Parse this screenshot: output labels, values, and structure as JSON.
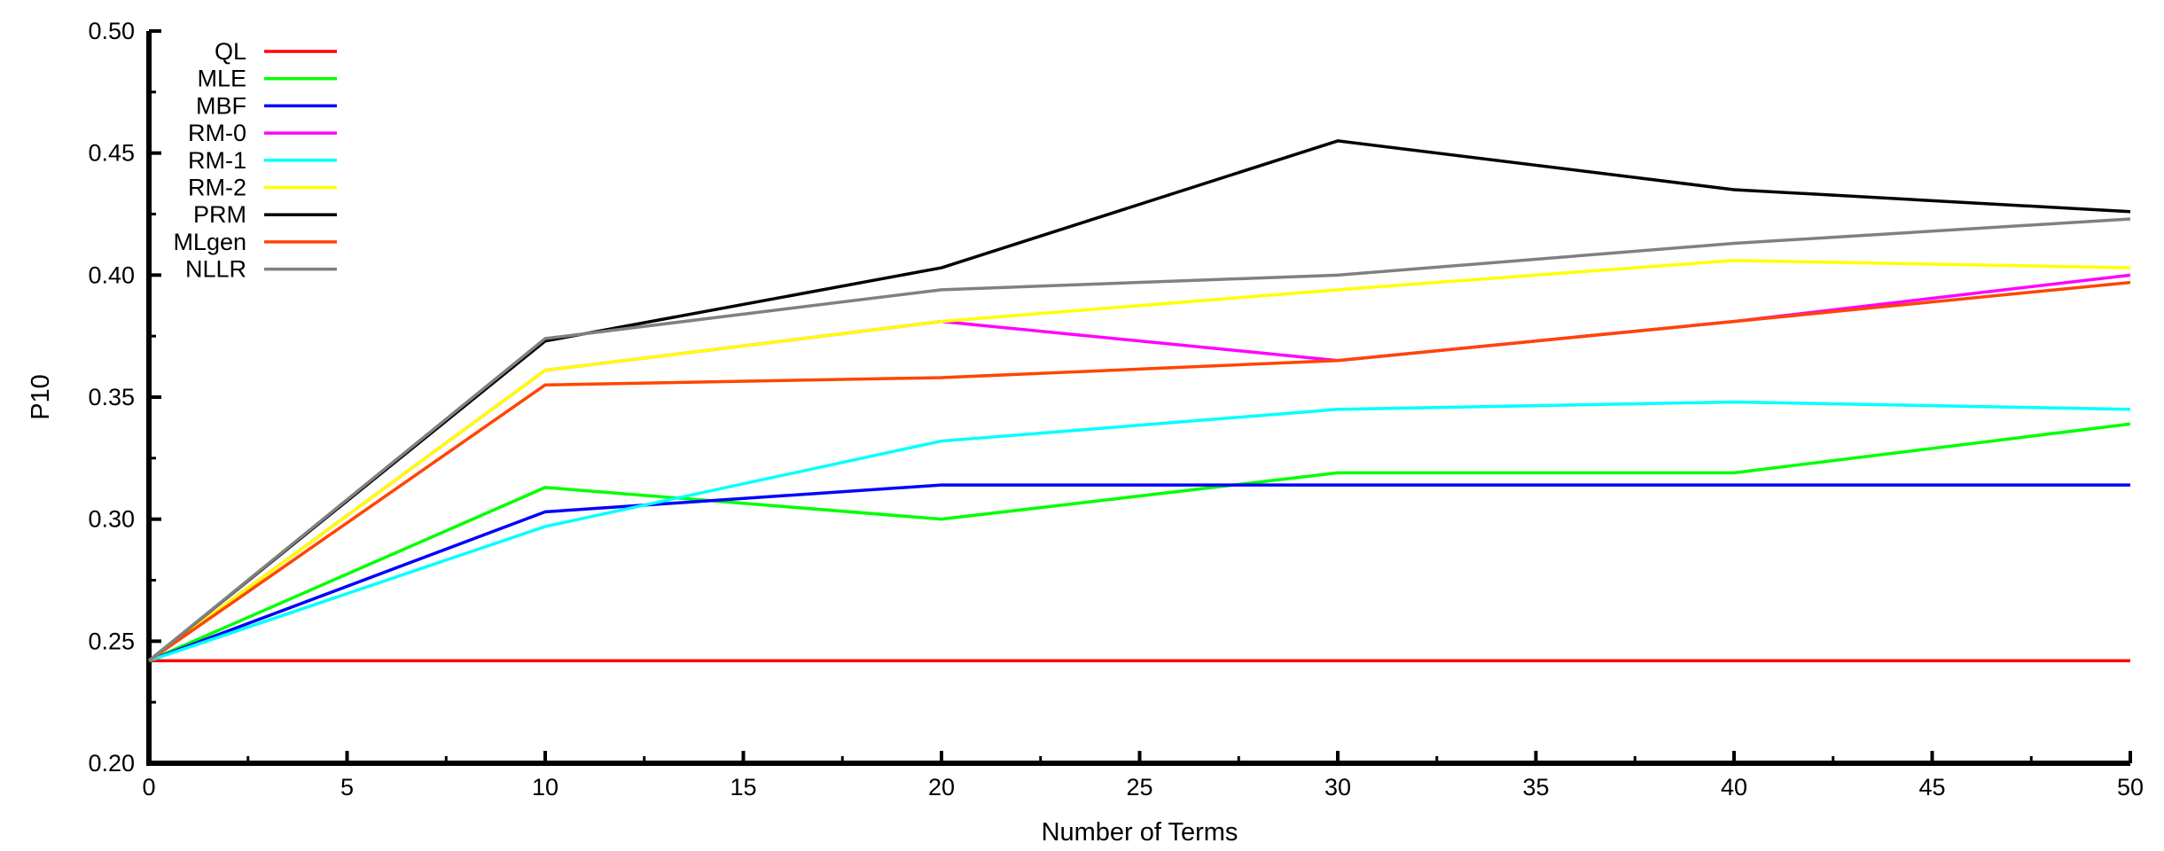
{
  "chart_data": {
    "type": "line",
    "title": "",
    "xlabel": "Number of Terms",
    "ylabel": "P10",
    "xlim": [
      0,
      50
    ],
    "ylim": [
      0.2,
      0.5
    ],
    "xticks": [
      "0",
      "5",
      "10",
      "15",
      "20",
      "25",
      "30",
      "35",
      "40",
      "45",
      "50"
    ],
    "yticks": [
      "0.20",
      "0.25",
      "0.30",
      "0.35",
      "0.40",
      "0.45",
      "0.50"
    ],
    "grid": false,
    "legend_position": "top-left",
    "x": [
      0,
      10,
      20,
      30,
      40,
      50
    ],
    "series": [
      {
        "name": "QL",
        "color": "#ff0000",
        "values": [
          0.242,
          0.242,
          0.242,
          0.242,
          0.242,
          0.242
        ]
      },
      {
        "name": "MLE",
        "color": "#00ff00",
        "values": [
          0.242,
          0.313,
          0.3,
          0.319,
          0.319,
          0.339
        ]
      },
      {
        "name": "MBF",
        "color": "#0000ff",
        "values": [
          0.242,
          0.303,
          0.314,
          0.314,
          0.314,
          0.314
        ]
      },
      {
        "name": "RM-0",
        "color": "#ff00ff",
        "values": [
          0.242,
          0.361,
          0.381,
          0.365,
          0.381,
          0.4
        ]
      },
      {
        "name": "RM-1",
        "color": "#00ffff",
        "values": [
          0.242,
          0.297,
          0.332,
          0.345,
          0.348,
          0.345
        ]
      },
      {
        "name": "RM-2",
        "color": "#ffff00",
        "values": [
          0.242,
          0.361,
          0.381,
          0.394,
          0.406,
          0.403
        ]
      },
      {
        "name": "PRM",
        "color": "#000000",
        "values": [
          0.242,
          0.373,
          0.403,
          0.455,
          0.435,
          0.426
        ]
      },
      {
        "name": "MLgen",
        "color": "#ff4500",
        "values": [
          0.242,
          0.355,
          0.358,
          0.365,
          0.381,
          0.397
        ]
      },
      {
        "name": "NLLR",
        "color": "#808080",
        "values": [
          0.242,
          0.374,
          0.394,
          0.4,
          0.413,
          0.423
        ]
      }
    ]
  }
}
